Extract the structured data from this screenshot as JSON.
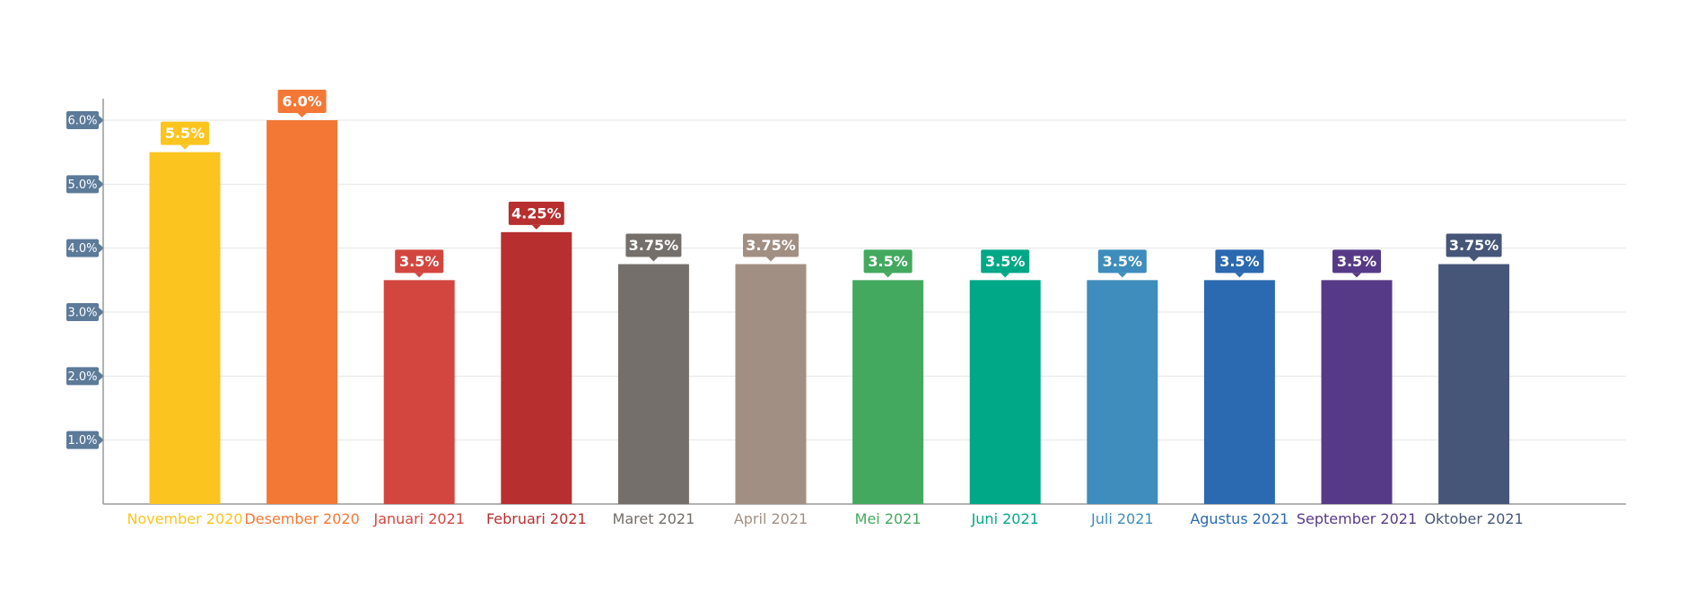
{
  "chart_data": {
    "type": "bar",
    "categories": [
      "November 2020",
      "Desember 2020",
      "Januari 2021",
      "Februari 2021",
      "Maret 2021",
      "April 2021",
      "Mei 2021",
      "Juni 2021",
      "Juli 2021",
      "Agustus 2021",
      "September 2021",
      "Oktober 2021"
    ],
    "values": [
      5.5,
      6.0,
      3.5,
      4.25,
      3.75,
      3.75,
      3.5,
      3.5,
      3.5,
      3.5,
      3.5,
      3.75
    ],
    "value_labels": [
      "5.5%",
      "6.0%",
      "3.5%",
      "4.25%",
      "3.75%",
      "3.75%",
      "3.5%",
      "3.5%",
      "3.5%",
      "3.5%",
      "3.5%",
      "3.75%"
    ],
    "colors": [
      "#FCC41E",
      "#F47835",
      "#D3463F",
      "#B72F2F",
      "#746F6A",
      "#A28F83",
      "#43A95E",
      "#00A887",
      "#3E8DBC",
      "#2B69B1",
      "#573A87",
      "#465678"
    ],
    "yticks": [
      1,
      2,
      3,
      4,
      5,
      6
    ],
    "ytick_labels": [
      "1.0%",
      "2.0%",
      "3.0%",
      "4.0%",
      "5.0%",
      "6.0%"
    ],
    "ylim": [
      0,
      6.0
    ],
    "title": "",
    "xlabel": "",
    "ylabel": "",
    "grid": true,
    "legend": "none",
    "axis_color": "#999999",
    "grid_color": "#E6E6E6",
    "tick_badge_color": "#5C7A99"
  }
}
